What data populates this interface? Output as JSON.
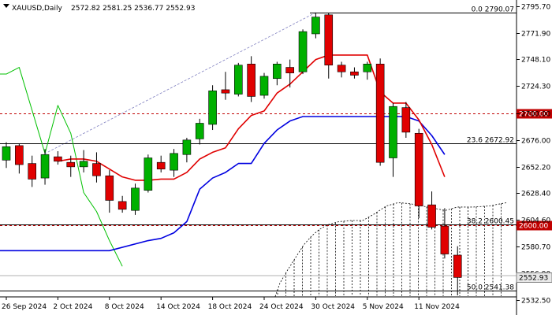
{
  "header": {
    "symbol": "XAUUSD,Daily",
    "ohlc": "2572.82 2581.25 2536.77 2552.93"
  },
  "colors": {
    "bull": "#00b000",
    "bear": "#e00000",
    "red_ma": "#e00000",
    "blue_ma": "#0000e0",
    "green_line": "#00c000",
    "grid": "#c0c0c0",
    "level_red": "#c00000"
  },
  "chart_data": {
    "type": "candlestick",
    "title": "XAUUSD,Daily",
    "ylim": [
      2528,
      2800
    ],
    "yticks": [
      "2795.70",
      "2771.90",
      "2748.10",
      "2724.30",
      "2700.00",
      "2676.00",
      "2652.20",
      "2628.40",
      "2604.60",
      "2580.70",
      "2556.90",
      "2532.50"
    ],
    "xlabels": [
      {
        "i": 0,
        "label": "26 Sep 2024"
      },
      {
        "i": 4,
        "label": "2 Oct 2024"
      },
      {
        "i": 8,
        "label": "8 Oct 2024"
      },
      {
        "i": 12,
        "label": "14 Oct 2024"
      },
      {
        "i": 16,
        "label": "18 Oct 2024"
      },
      {
        "i": 20,
        "label": "24 Oct 2024"
      },
      {
        "i": 24,
        "label": "30 Oct 2024"
      },
      {
        "i": 28,
        "label": "5 Nov 2024"
      },
      {
        "i": 32,
        "label": "11 Nov 2024"
      }
    ],
    "candles": [
      {
        "o": 2658,
        "h": 2674,
        "l": 2651,
        "c": 2670
      },
      {
        "o": 2671,
        "h": 2673,
        "l": 2646,
        "c": 2654
      },
      {
        "o": 2655,
        "h": 2662,
        "l": 2634,
        "c": 2641
      },
      {
        "o": 2642,
        "h": 2668,
        "l": 2636,
        "c": 2663
      },
      {
        "o": 2661,
        "h": 2666,
        "l": 2654,
        "c": 2657
      },
      {
        "o": 2656,
        "h": 2662,
        "l": 2643,
        "c": 2652
      },
      {
        "o": 2652,
        "h": 2667,
        "l": 2647,
        "c": 2657
      },
      {
        "o": 2655,
        "h": 2665,
        "l": 2638,
        "c": 2644
      },
      {
        "o": 2644,
        "h": 2649,
        "l": 2611,
        "c": 2622
      },
      {
        "o": 2621,
        "h": 2626,
        "l": 2611,
        "c": 2614
      },
      {
        "o": 2613,
        "h": 2637,
        "l": 2609,
        "c": 2633
      },
      {
        "o": 2631,
        "h": 2663,
        "l": 2629,
        "c": 2660
      },
      {
        "o": 2656,
        "h": 2662,
        "l": 2647,
        "c": 2650
      },
      {
        "o": 2649,
        "h": 2668,
        "l": 2643,
        "c": 2664
      },
      {
        "o": 2663,
        "h": 2678,
        "l": 2656,
        "c": 2676
      },
      {
        "o": 2677,
        "h": 2695,
        "l": 2672,
        "c": 2691
      },
      {
        "o": 2690,
        "h": 2725,
        "l": 2685,
        "c": 2720
      },
      {
        "o": 2721,
        "h": 2737,
        "l": 2712,
        "c": 2718
      },
      {
        "o": 2717,
        "h": 2745,
        "l": 2715,
        "c": 2743
      },
      {
        "o": 2744,
        "h": 2751,
        "l": 2710,
        "c": 2715
      },
      {
        "o": 2716,
        "h": 2736,
        "l": 2713,
        "c": 2733
      },
      {
        "o": 2731,
        "h": 2746,
        "l": 2725,
        "c": 2744
      },
      {
        "o": 2741,
        "h": 2748,
        "l": 2723,
        "c": 2736
      },
      {
        "o": 2737,
        "h": 2775,
        "l": 2735,
        "c": 2773
      },
      {
        "o": 2771,
        "h": 2790,
        "l": 2767,
        "c": 2786
      },
      {
        "o": 2788,
        "h": 2790,
        "l": 2731,
        "c": 2743
      },
      {
        "o": 2743,
        "h": 2746,
        "l": 2732,
        "c": 2737
      },
      {
        "o": 2737,
        "h": 2741,
        "l": 2731,
        "c": 2734
      },
      {
        "o": 2737,
        "h": 2746,
        "l": 2730,
        "c": 2744
      },
      {
        "o": 2744,
        "h": 2749,
        "l": 2653,
        "c": 2656
      },
      {
        "o": 2660,
        "h": 2709,
        "l": 2643,
        "c": 2706
      },
      {
        "o": 2705,
        "h": 2710,
        "l": 2678,
        "c": 2683
      },
      {
        "o": 2682,
        "h": 2686,
        "l": 2606,
        "c": 2617
      },
      {
        "o": 2618,
        "h": 2630,
        "l": 2596,
        "c": 2598
      },
      {
        "o": 2599,
        "h": 2615,
        "l": 2570,
        "c": 2574
      },
      {
        "o": 2573,
        "h": 2581,
        "l": 2537,
        "c": 2553
      }
    ],
    "red_ma": [
      {
        "i": 4,
        "v": 2657
      },
      {
        "i": 5,
        "v": 2659
      },
      {
        "i": 6,
        "v": 2659
      },
      {
        "i": 7,
        "v": 2657
      },
      {
        "i": 8,
        "v": 2650
      },
      {
        "i": 9,
        "v": 2643
      },
      {
        "i": 10,
        "v": 2640
      },
      {
        "i": 11,
        "v": 2640
      },
      {
        "i": 12,
        "v": 2641
      },
      {
        "i": 13,
        "v": 2641
      },
      {
        "i": 14,
        "v": 2647
      },
      {
        "i": 15,
        "v": 2659
      },
      {
        "i": 16,
        "v": 2665
      },
      {
        "i": 17,
        "v": 2669
      },
      {
        "i": 18,
        "v": 2686
      },
      {
        "i": 19,
        "v": 2698
      },
      {
        "i": 20,
        "v": 2702
      },
      {
        "i": 21,
        "v": 2718
      },
      {
        "i": 22,
        "v": 2726
      },
      {
        "i": 23,
        "v": 2737
      },
      {
        "i": 24,
        "v": 2748
      },
      {
        "i": 25,
        "v": 2752
      },
      {
        "i": 26,
        "v": 2752
      },
      {
        "i": 27,
        "v": 2752
      },
      {
        "i": 28,
        "v": 2752
      },
      {
        "i": 29,
        "v": 2719
      },
      {
        "i": 30,
        "v": 2709
      },
      {
        "i": 31,
        "v": 2709
      },
      {
        "i": 32,
        "v": 2694
      },
      {
        "i": 33,
        "v": 2672
      },
      {
        "i": 34,
        "v": 2643
      }
    ],
    "blue_ma": [
      {
        "i": -1,
        "v": 2577
      },
      {
        "i": 8,
        "v": 2577
      },
      {
        "i": 11,
        "v": 2586
      },
      {
        "i": 12,
        "v": 2588
      },
      {
        "i": 13,
        "v": 2593
      },
      {
        "i": 14,
        "v": 2603
      },
      {
        "i": 15,
        "v": 2632
      },
      {
        "i": 16,
        "v": 2642
      },
      {
        "i": 17,
        "v": 2647
      },
      {
        "i": 18,
        "v": 2655
      },
      {
        "i": 19,
        "v": 2655
      },
      {
        "i": 20,
        "v": 2673
      },
      {
        "i": 21,
        "v": 2685
      },
      {
        "i": 22,
        "v": 2693
      },
      {
        "i": 23,
        "v": 2697
      },
      {
        "i": 24,
        "v": 2697
      },
      {
        "i": 25,
        "v": 2697
      },
      {
        "i": 26,
        "v": 2697
      },
      {
        "i": 27,
        "v": 2697
      },
      {
        "i": 28,
        "v": 2697
      },
      {
        "i": 29,
        "v": 2697
      },
      {
        "i": 30,
        "v": 2697
      },
      {
        "i": 31,
        "v": 2697
      },
      {
        "i": 32,
        "v": 2693
      },
      {
        "i": 33,
        "v": 2680
      },
      {
        "i": 34,
        "v": 2663
      }
    ],
    "green_line": [
      {
        "i": -1,
        "v": 2735
      },
      {
        "i": 0,
        "v": 2735
      },
      {
        "i": 1,
        "v": 2741
      },
      {
        "i": 3,
        "v": 2664
      },
      {
        "i": 4,
        "v": 2707
      },
      {
        "i": 5,
        "v": 2682
      },
      {
        "i": 6,
        "v": 2629
      },
      {
        "i": 7,
        "v": 2612
      },
      {
        "i": 8,
        "v": 2586
      },
      {
        "i": 9,
        "v": 2563
      }
    ],
    "fib_levels": [
      {
        "label": "0.0 2790.07",
        "value": 2790.07
      },
      {
        "label": "23.6 2672.92",
        "value": 2672.92
      },
      {
        "label": "38.2 2600.45",
        "value": 2600.45
      },
      {
        "label": "50.0 2541.38",
        "value": 2541.38
      }
    ],
    "levels": [
      {
        "label": "2700.00",
        "value": 2700
      },
      {
        "label": "2600.00",
        "value": 2600
      }
    ],
    "last_price": {
      "label": "2552.93",
      "value": 2552.93
    }
  }
}
